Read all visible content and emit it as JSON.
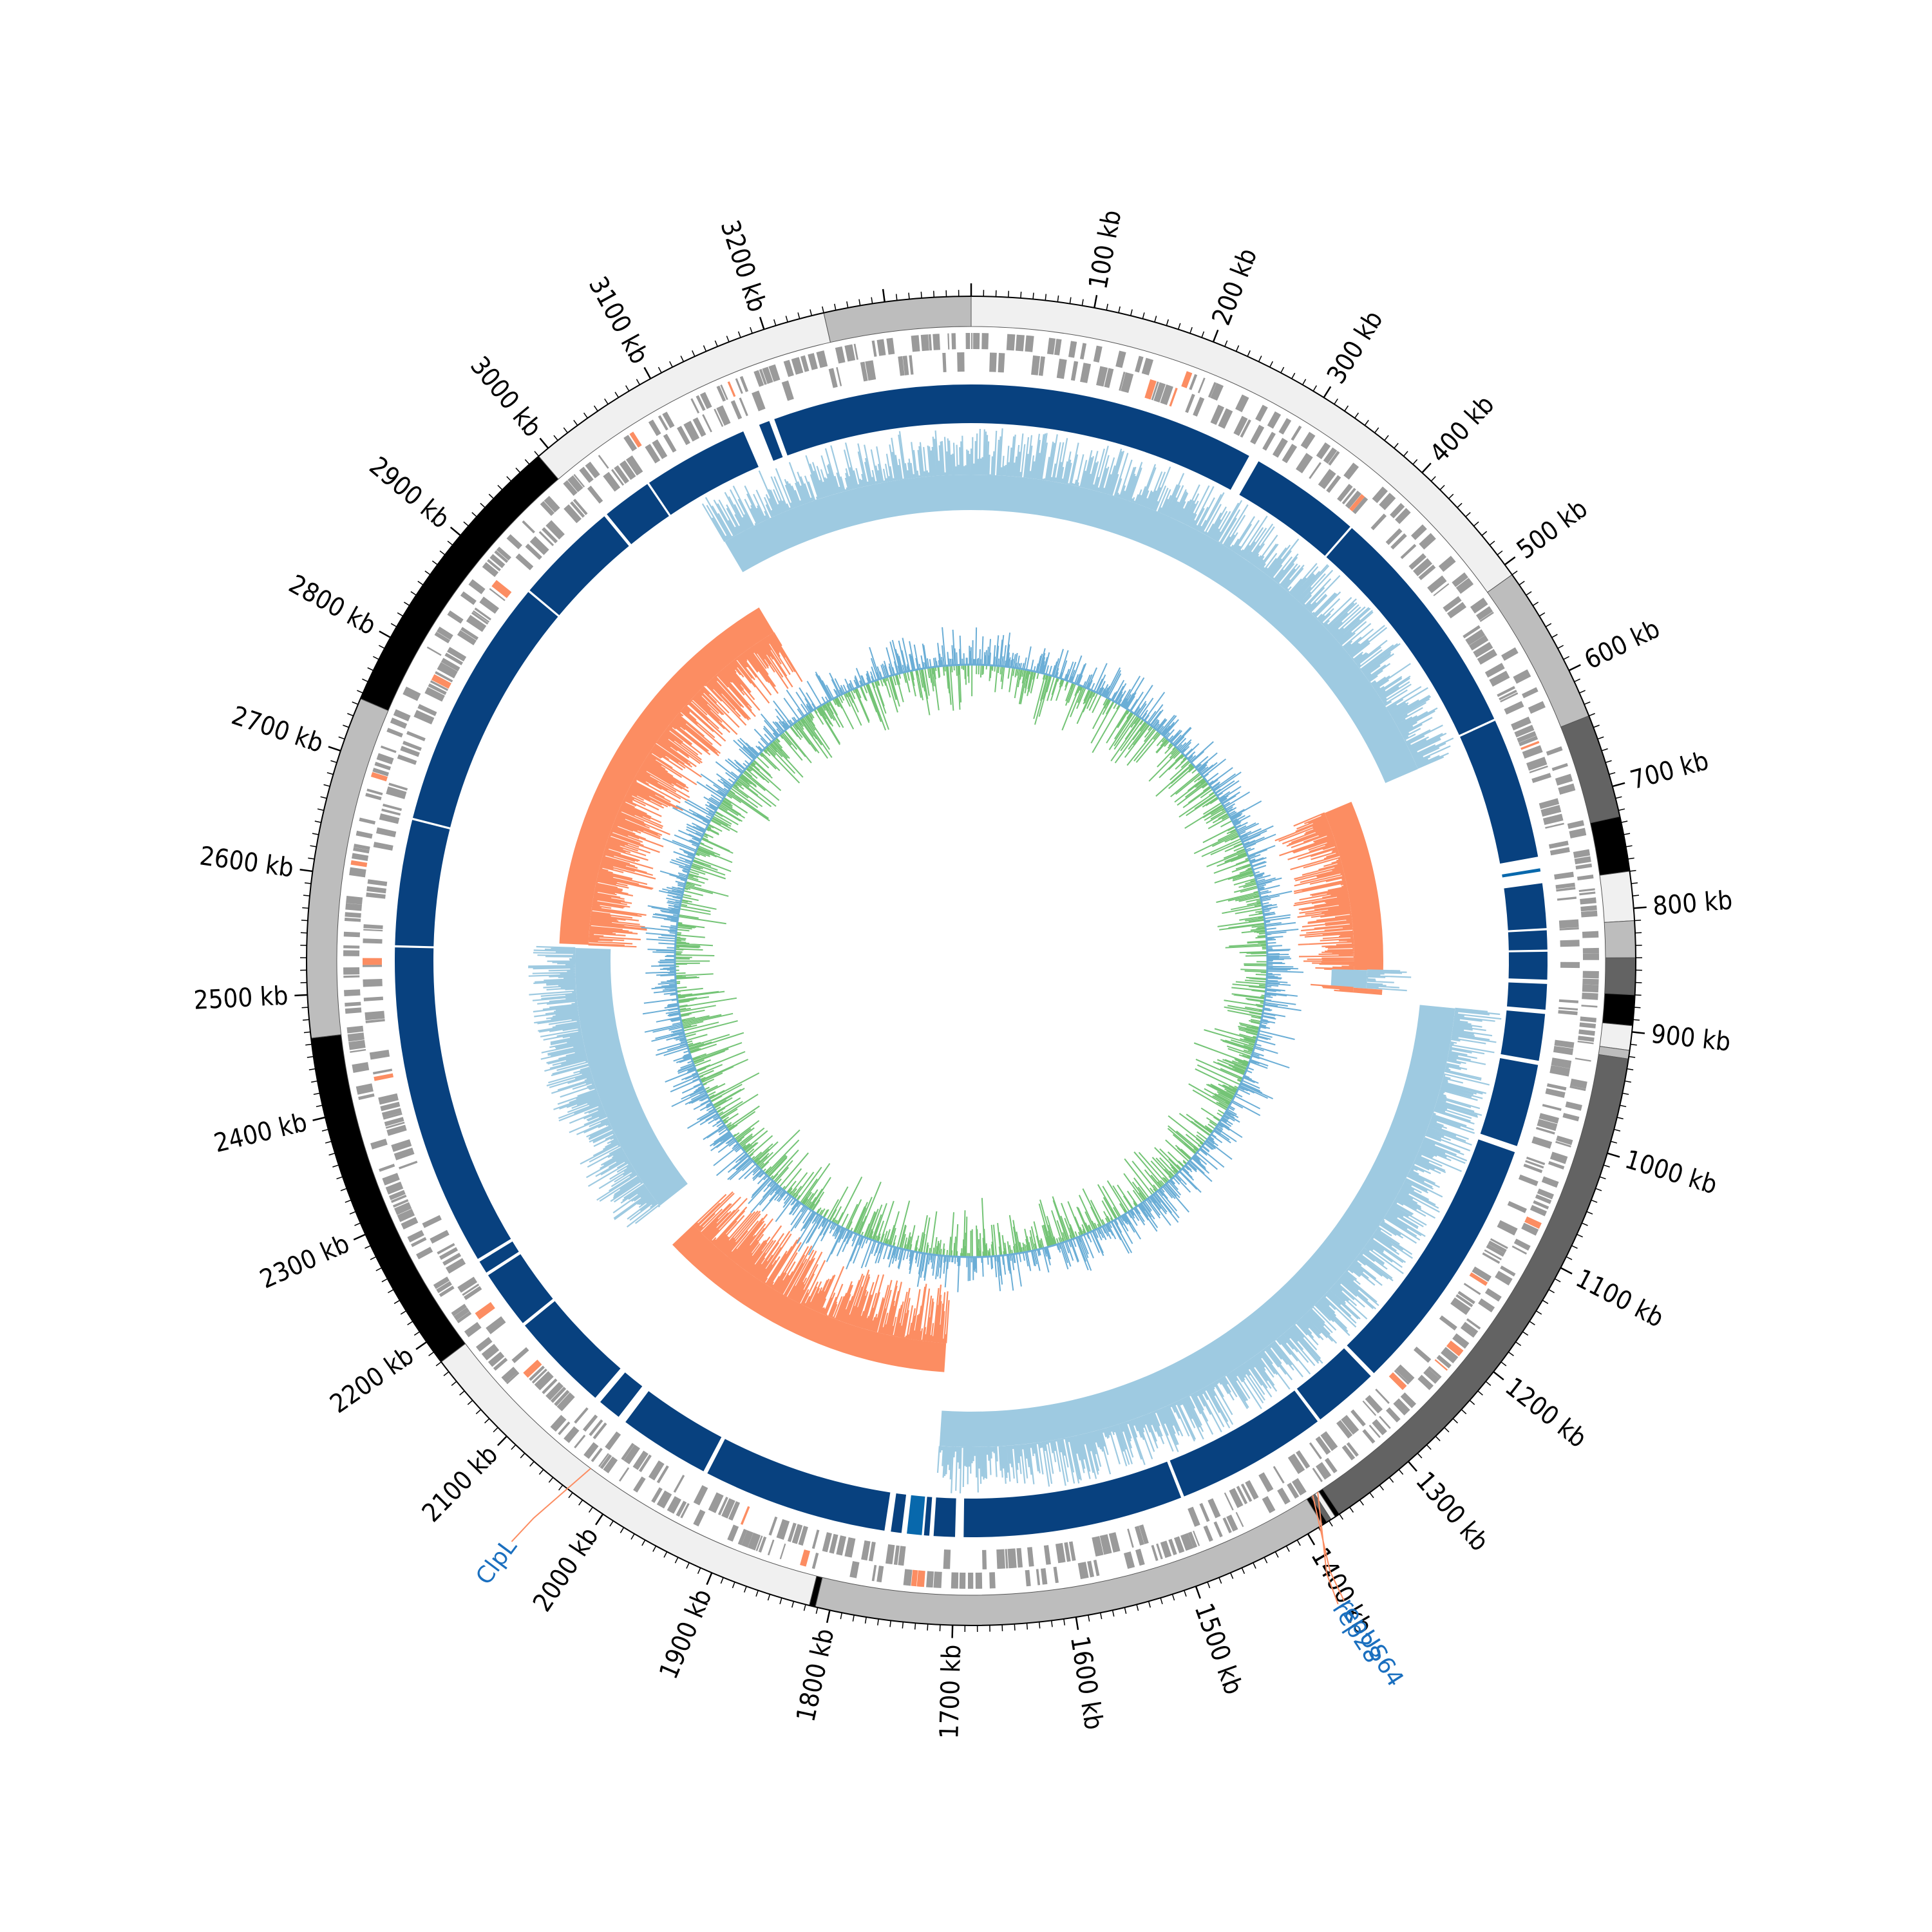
{
  "chart_data": {
    "type": "circular-genome-map",
    "genome_length_kb": 3370,
    "ticks": {
      "unit": "kb",
      "major_step_kb": 100,
      "minor_step_kb": 10,
      "labels": [
        "100 kb",
        "200 kb",
        "300 kb",
        "400 kb",
        "500 kb",
        "600 kb",
        "700 kb",
        "800 kb",
        "900 kb",
        "1000 kb",
        "1100 kb",
        "1200 kb",
        "1300 kb",
        "1400 kb",
        "1500 kb",
        "1600 kb",
        "1700 kb",
        "1800 kb",
        "1900 kb",
        "2000 kb",
        "2100 kb",
        "2200 kb",
        "2300 kb",
        "2400 kb",
        "2500 kb",
        "2600 kb",
        "2700 kb",
        "2800 kb",
        "2900 kb",
        "3000 kb",
        "3100 kb",
        "3200 kb"
      ]
    },
    "contig_track": [
      {
        "start": 0,
        "end": 510,
        "shade": "#f0f0f0"
      },
      {
        "start": 510,
        "end": 640,
        "shade": "#bdbdbd"
      },
      {
        "start": 640,
        "end": 725,
        "shade": "#636363"
      },
      {
        "start": 725,
        "end": 770,
        "shade": "#000000"
      },
      {
        "start": 770,
        "end": 810,
        "shade": "#f0f0f0"
      },
      {
        "start": 810,
        "end": 840,
        "shade": "#bdbdbd"
      },
      {
        "start": 840,
        "end": 870,
        "shade": "#636363"
      },
      {
        "start": 870,
        "end": 895,
        "shade": "#000000"
      },
      {
        "start": 895,
        "end": 915,
        "shade": "#f0f0f0"
      },
      {
        "start": 915,
        "end": 922,
        "shade": "#bdbdbd"
      },
      {
        "start": 922,
        "end": 1370,
        "shade": "#636363"
      },
      {
        "start": 1370,
        "end": 1374,
        "shade": "#000000"
      },
      {
        "start": 1374,
        "end": 1378,
        "shade": "#f0f0f0"
      },
      {
        "start": 1378,
        "end": 1382,
        "shade": "#636363"
      },
      {
        "start": 1382,
        "end": 1386,
        "shade": "#000000"
      },
      {
        "start": 1386,
        "end": 1812,
        "shade": "#bdbdbd"
      },
      {
        "start": 1812,
        "end": 1817,
        "shade": "#000000"
      },
      {
        "start": 1817,
        "end": 2180,
        "shade": "#f0f0f0"
      },
      {
        "start": 2180,
        "end": 2465,
        "shade": "#000000"
      },
      {
        "start": 2465,
        "end": 2745,
        "shade": "#bdbdbd"
      },
      {
        "start": 2745,
        "end": 2990,
        "shade": "#000000"
      },
      {
        "start": 2990,
        "end": 3250,
        "shade": "#f0f0f0"
      },
      {
        "start": 3250,
        "end": 3370,
        "shade": "#bdbdbd"
      }
    ],
    "alignment_blocks": [
      {
        "start": 0,
        "end": 270
      },
      {
        "start": 280,
        "end": 385
      },
      {
        "start": 387,
        "end": 610
      },
      {
        "start": 612,
        "end": 745
      },
      {
        "start": 756,
        "end": 759,
        "accent": true
      },
      {
        "start": 770,
        "end": 812
      },
      {
        "start": 814,
        "end": 832
      },
      {
        "start": 834,
        "end": 860
      },
      {
        "start": 864,
        "end": 888
      },
      {
        "start": 892,
        "end": 936
      },
      {
        "start": 940,
        "end": 1018
      },
      {
        "start": 1024,
        "end": 1270
      },
      {
        "start": 1274,
        "end": 1336
      },
      {
        "start": 1339,
        "end": 1482
      },
      {
        "start": 1485,
        "end": 1692
      },
      {
        "start": 1700,
        "end": 1720
      },
      {
        "start": 1724,
        "end": 1729
      },
      {
        "start": 1731,
        "end": 1745,
        "accent": true
      },
      {
        "start": 1750,
        "end": 1760
      },
      {
        "start": 1766,
        "end": 1940
      },
      {
        "start": 1944,
        "end": 2030
      },
      {
        "start": 2038,
        "end": 2060
      },
      {
        "start": 2066,
        "end": 2160
      },
      {
        "start": 2163,
        "end": 2218
      },
      {
        "start": 2221,
        "end": 2233
      },
      {
        "start": 2236,
        "end": 2540
      },
      {
        "start": 2542,
        "end": 2660
      },
      {
        "start": 2662,
        "end": 2900
      },
      {
        "start": 2902,
        "end": 3000
      },
      {
        "start": 3003,
        "end": 3050
      },
      {
        "start": 3052,
        "end": 3152
      },
      {
        "start": 3168,
        "end": 3178
      },
      {
        "start": 3183,
        "end": 3370
      }
    ],
    "gc_skew_track": {
      "positive_color": "#9ecae1",
      "negative_color": "#fc8d62",
      "segments": [
        {
          "start": 3085,
          "end": 3370,
          "sign": "positive"
        },
        {
          "start": 0,
          "end": 625,
          "sign": "positive"
        },
        {
          "start": 630,
          "end": 855,
          "sign": "negative"
        },
        {
          "start": 855,
          "end": 880,
          "sign": "positive",
          "outward": true
        },
        {
          "start": 880,
          "end": 887,
          "sign": "negative"
        },
        {
          "start": 895,
          "end": 1720,
          "sign": "positive"
        },
        {
          "start": 1720,
          "end": 2120,
          "sign": "negative"
        },
        {
          "start": 2170,
          "end": 2545,
          "sign": "positive",
          "outward": true
        },
        {
          "start": 2550,
          "end": 3080,
          "sign": "negative"
        }
      ]
    },
    "gc_content_track": {
      "above_color": "#6baed6",
      "below_color": "#74c476"
    },
    "annotations": [
      {
        "label": "rep28",
        "position_kb": 1375,
        "color": "#1a6fbf"
      },
      {
        "label": "repUS64",
        "position_kb": 1380,
        "color": "#1a6fbf"
      },
      {
        "label": "ClpL",
        "position_kb": 2030,
        "color": "#1a6fbf"
      }
    ],
    "colors": {
      "alignment": "#08417f",
      "alignment_accent": "#0868ac",
      "gene": "#9a9a9a",
      "gene_highlight": "#fc8d62",
      "leader_line": "#fc8d62"
    }
  }
}
